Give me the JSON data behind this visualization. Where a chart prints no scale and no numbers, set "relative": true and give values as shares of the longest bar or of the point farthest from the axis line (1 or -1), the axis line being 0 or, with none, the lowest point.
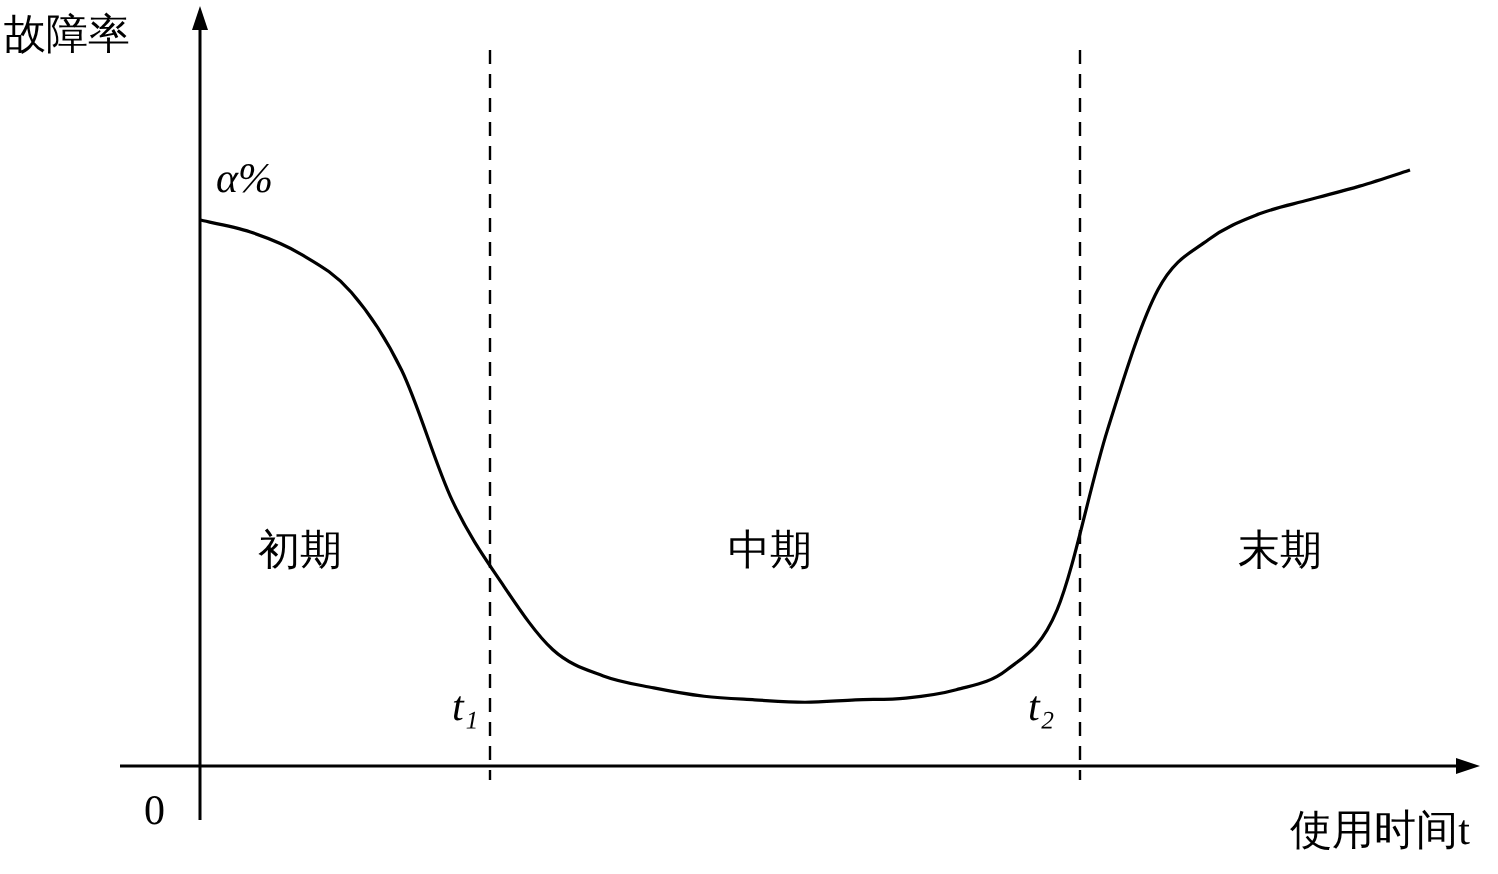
{
  "chart_data": {
    "type": "line",
    "relative": true,
    "ylabel": "故障率",
    "xlabel": "使用时间t",
    "categories": [
      null,
      null,
      null,
      null,
      null,
      null,
      null,
      null,
      null,
      null,
      null,
      null,
      null,
      null,
      null,
      null,
      null,
      null,
      null,
      null,
      null,
      null,
      null,
      null,
      null
    ],
    "series": [
      {
        "color": "#000000",
        "values": [
          0.916,
          0.896,
          0.859,
          0.795,
          0.664,
          0.446,
          0.305,
          0.195,
          0.151,
          0.131,
          0.117,
          0.111,
          0.107,
          0.111,
          0.114,
          0.128,
          0.161,
          0.262,
          0.564,
          0.799,
          0.883,
          0.926,
          0.95,
          0.973,
          1
        ]
      }
    ],
    "annotations": [
      "0",
      "α%",
      "初期",
      "中期",
      "末期",
      "t₁",
      "t₂"
    ],
    "line_style": "solid"
  }
}
